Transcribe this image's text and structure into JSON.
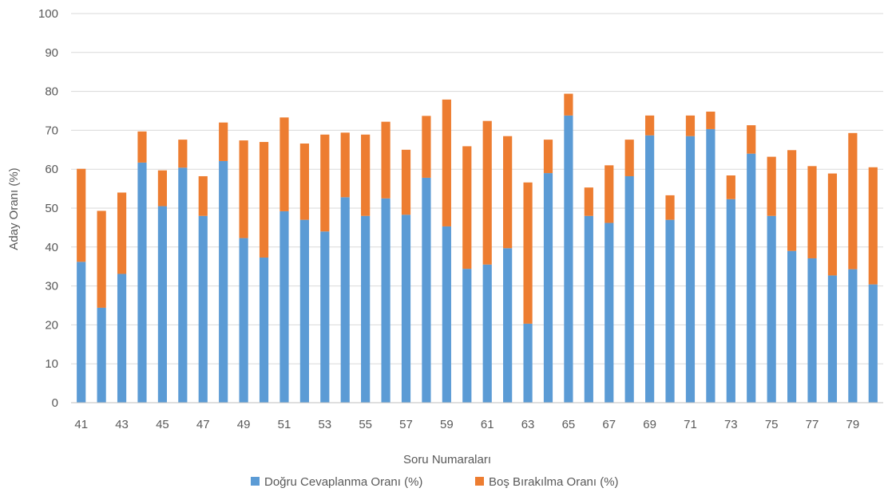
{
  "chart_data": {
    "type": "bar",
    "stacked": true,
    "title": "",
    "xlabel": "Soru Numaraları",
    "ylabel": "Aday Oranı (%)",
    "ylim": [
      0,
      100
    ],
    "yticks": [
      0,
      10,
      20,
      30,
      40,
      50,
      60,
      70,
      80,
      90,
      100
    ],
    "grid": true,
    "legend_position": "bottom",
    "categories": [
      "41",
      "42",
      "43",
      "44",
      "45",
      "46",
      "47",
      "48",
      "49",
      "50",
      "51",
      "52",
      "53",
      "54",
      "55",
      "56",
      "57",
      "58",
      "59",
      "60",
      "61",
      "62",
      "63",
      "64",
      "65",
      "66",
      "67",
      "68",
      "69",
      "70",
      "71",
      "72",
      "73",
      "74",
      "75",
      "76",
      "77",
      "78",
      "79",
      "80"
    ],
    "x_tick_labels": [
      "41",
      "43",
      "45",
      "47",
      "49",
      "51",
      "53",
      "55",
      "57",
      "59",
      "61",
      "63",
      "65",
      "67",
      "69",
      "71",
      "73",
      "75",
      "77",
      "79"
    ],
    "series": [
      {
        "name": "Doğru Cevaplanma Oranı (%)",
        "color": "#5b9bd5",
        "values": [
          36.2,
          24.4,
          33.1,
          61.7,
          50.5,
          60.4,
          48.0,
          62.1,
          42.3,
          37.3,
          49.2,
          47.0,
          44.0,
          52.8,
          48.0,
          52.5,
          48.3,
          57.8,
          45.3,
          34.4,
          35.5,
          39.7,
          20.3,
          59.0,
          73.8,
          48.0,
          46.2,
          58.2,
          68.7,
          47.0,
          68.5,
          70.3,
          52.3,
          64.0,
          48.0,
          39.0,
          37.1,
          32.7,
          34.3,
          30.4
        ]
      },
      {
        "name": "Boş Bırakılma Oranı (%)",
        "color": "#ed7d31",
        "values": [
          23.9,
          24.9,
          20.9,
          8.0,
          9.2,
          7.2,
          10.2,
          9.9,
          25.1,
          29.7,
          24.1,
          19.6,
          24.9,
          16.6,
          20.9,
          19.7,
          16.7,
          15.9,
          32.6,
          31.5,
          36.9,
          28.8,
          36.3,
          8.6,
          5.6,
          7.3,
          14.8,
          9.4,
          5.1,
          6.3,
          5.3,
          4.5,
          6.1,
          7.3,
          15.2,
          25.9,
          23.7,
          26.2,
          35.0,
          30.1
        ]
      }
    ]
  }
}
